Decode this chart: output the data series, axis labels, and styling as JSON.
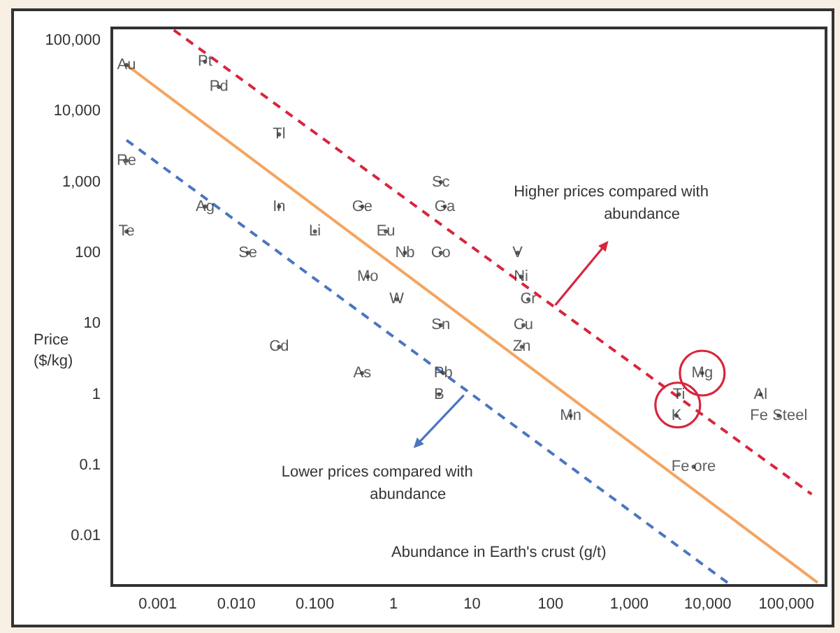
{
  "chart_data": {
    "type": "scatter",
    "xlabel": "Abundance in Earth's crust (g/t)",
    "ylabel": "Price\n($/kg)",
    "log": "xy",
    "grid": false,
    "xlim": [
      0.00026,
      320000
    ],
    "ylim": [
      0.002,
      150000
    ],
    "xticks": [
      0.001,
      {
        "value": 0.01,
        "label": "0.010"
      },
      {
        "value": 0.1,
        "label": "0.100"
      },
      1,
      10,
      100,
      {
        "value": 1000,
        "label": "1,000"
      },
      {
        "value": 10000,
        "label": "10,000"
      },
      {
        "value": 100000,
        "label": "100,000"
      }
    ],
    "yticks": [
      0.01,
      0.1,
      1,
      10,
      100,
      {
        "value": 1000,
        "label": "1,000"
      },
      {
        "value": 10000,
        "label": "10,000"
      },
      {
        "value": 100000,
        "label": "100,000"
      }
    ],
    "series": [
      {
        "color": "#333333",
        "marker": "circle",
        "x": [
          0.0004,
          0.004,
          0.006,
          0.035,
          0.0004,
          4,
          0.004,
          0.035,
          0.4,
          4.5,
          0.0004,
          0.1,
          0.8,
          0.014,
          1.4,
          4,
          38,
          0.47,
          42,
          1.1,
          52,
          4,
          45,
          0.035,
          43,
          0.4,
          4.3,
          8500,
          3.8,
          4300,
          47000,
          4000,
          180,
          80000,
          6600
        ],
        "values": [
          45000,
          50000,
          22000,
          4700,
          2000,
          1000,
          450,
          450,
          450,
          450,
          200,
          200,
          200,
          100,
          100,
          100,
          100,
          46,
          46,
          22,
          22,
          9.5,
          9.5,
          4.7,
          4.7,
          2,
          2,
          2,
          1,
          1,
          1,
          0.5,
          0.5,
          0.5,
          0.095
        ],
        "value_labels": [
          "Au",
          "Pt",
          "Pd",
          "Tl",
          "Re",
          "Sc",
          "Ag",
          "In",
          "Ge",
          "Ga",
          "Te",
          "Li",
          "Eu",
          "Se",
          "Nb",
          "Co",
          "V",
          "Mo",
          "Ni",
          "W",
          "Cr",
          "Sn",
          "Cu",
          "Cd",
          "Zn",
          "As",
          "Pb",
          "Mg",
          "B",
          "Ti",
          "Al",
          "K",
          "Mn",
          "Fe Steel",
          "Fe ore"
        ]
      },
      {
        "type": "line",
        "color": "#f4a460",
        "line_style": "solid",
        "marker": "none",
        "x": [
          0.0004,
          250000
        ],
        "values": [
          45000,
          0.0022
        ]
      },
      {
        "type": "line",
        "color": "#d7263d",
        "line_style": "dashed",
        "marker": "none",
        "x": [
          0.0016,
          210000
        ],
        "values": [
          140000,
          0.039
        ]
      },
      {
        "type": "line",
        "color": "#4a76c0",
        "line_style": "dashed",
        "marker": "none",
        "x": [
          0.0004,
          20000
        ],
        "values": [
          3900,
          0.002
        ]
      }
    ],
    "annotations": [
      "Higher prices compared with\nabundance",
      "Lower prices compared with\nabundance"
    ]
  }
}
